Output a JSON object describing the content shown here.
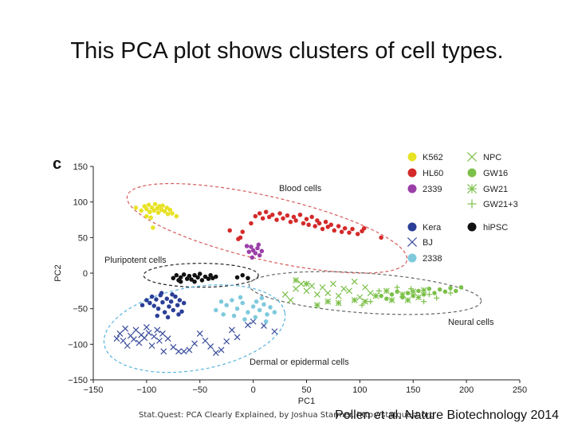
{
  "slide": {
    "title": "This PCA plot shows clusters of cell types.",
    "footer_left": "Stat.Quest: PCA Clearly Explained, by Joshua Starmer. http://statquest.org",
    "footer_right": "Pollen et al. Nature Biotechnology 2014"
  },
  "chart_data": {
    "type": "scatter",
    "panel_label": "c",
    "xlabel": "PC1",
    "ylabel": "PC2",
    "xlim": [
      -150,
      250
    ],
    "ylim": [
      -150,
      150
    ],
    "xticks": [
      -150,
      -100,
      -50,
      0,
      50,
      100,
      150,
      200,
      250
    ],
    "yticks": [
      150,
      100,
      50,
      0,
      -50,
      -100,
      -150
    ],
    "grid": false,
    "legend_position": "top-right",
    "cluster_labels": [
      "Blood cells",
      "Pluripotent cells",
      "Neural cells",
      "Dermal or epidermal cells"
    ],
    "series": [
      {
        "name": "K562",
        "marker": "dot",
        "color": "#e8e224",
        "points": [
          [
            -110,
            92
          ],
          [
            -105,
            88
          ],
          [
            -102,
            94
          ],
          [
            -100,
            90
          ],
          [
            -98,
            96
          ],
          [
            -97,
            86
          ],
          [
            -95,
            92
          ],
          [
            -93,
            88
          ],
          [
            -92,
            97
          ],
          [
            -90,
            91
          ],
          [
            -89,
            85
          ],
          [
            -88,
            94
          ],
          [
            -86,
            89
          ],
          [
            -85,
            95
          ],
          [
            -83,
            87
          ],
          [
            -81,
            92
          ],
          [
            -80,
            83
          ],
          [
            -78,
            89
          ],
          [
            -76,
            84
          ],
          [
            -72,
            80
          ],
          [
            -94,
            64
          ],
          [
            -100,
            80
          ],
          [
            -96,
            78
          ]
        ]
      },
      {
        "name": "HL60",
        "marker": "dot",
        "color": "#d42a2a",
        "points": [
          [
            2,
            80
          ],
          [
            6,
            84
          ],
          [
            9,
            77
          ],
          [
            12,
            86
          ],
          [
            15,
            79
          ],
          [
            18,
            82
          ],
          [
            22,
            75
          ],
          [
            25,
            84
          ],
          [
            28,
            77
          ],
          [
            32,
            81
          ],
          [
            35,
            72
          ],
          [
            38,
            79
          ],
          [
            40,
            74
          ],
          [
            44,
            82
          ],
          [
            47,
            70
          ],
          [
            50,
            76
          ],
          [
            52,
            68
          ],
          [
            55,
            79
          ],
          [
            58,
            66
          ],
          [
            60,
            74
          ],
          [
            62,
            70
          ],
          [
            65,
            62
          ],
          [
            68,
            72
          ],
          [
            70,
            65
          ],
          [
            73,
            68
          ],
          [
            76,
            60
          ],
          [
            80,
            66
          ],
          [
            83,
            58
          ],
          [
            86,
            63
          ],
          [
            90,
            57
          ],
          [
            93,
            62
          ],
          [
            98,
            55
          ],
          [
            102,
            59
          ],
          [
            104,
            63
          ],
          [
            120,
            50
          ],
          [
            -10,
            58
          ],
          [
            -12,
            50
          ],
          [
            -2,
            70
          ],
          [
            -22,
            60
          ],
          [
            -14,
            48
          ]
        ]
      },
      {
        "name": "2339",
        "marker": "dot",
        "color": "#9b3fa8",
        "points": [
          [
            -2,
            37
          ],
          [
            0,
            32
          ],
          [
            2,
            28
          ],
          [
            4,
            35
          ],
          [
            6,
            25
          ],
          [
            -4,
            30
          ],
          [
            8,
            31
          ],
          [
            5,
            40
          ],
          [
            -1,
            22
          ],
          [
            -6,
            38
          ]
        ]
      },
      {
        "name": "hiPSC",
        "marker": "dot",
        "color": "#111111",
        "points": [
          [
            -75,
            -7
          ],
          [
            -72,
            -3
          ],
          [
            -70,
            -10
          ],
          [
            -68,
            -6
          ],
          [
            -65,
            -2
          ],
          [
            -62,
            -8
          ],
          [
            -60,
            -4
          ],
          [
            -58,
            -9
          ],
          [
            -55,
            -3
          ],
          [
            -52,
            -6
          ],
          [
            -50,
            -1
          ],
          [
            -48,
            -10
          ],
          [
            -45,
            -5
          ],
          [
            -42,
            -8
          ],
          [
            -40,
            -3
          ],
          [
            -38,
            -7
          ],
          [
            -35,
            -5
          ],
          [
            -15,
            -6
          ],
          [
            -10,
            -3
          ],
          [
            -5,
            -7
          ],
          [
            -68,
            -12
          ],
          [
            -55,
            -12
          ]
        ]
      },
      {
        "name": "Kera",
        "marker": "dot",
        "color": "#2b3f97",
        "points": [
          [
            -100,
            -38
          ],
          [
            -97,
            -42
          ],
          [
            -95,
            -33
          ],
          [
            -93,
            -46
          ],
          [
            -91,
            -37
          ],
          [
            -89,
            -50
          ],
          [
            -87,
            -31
          ],
          [
            -85,
            -41
          ],
          [
            -83,
            -55
          ],
          [
            -81,
            -36
          ],
          [
            -79,
            -47
          ],
          [
            -77,
            -40
          ],
          [
            -75,
            -52
          ],
          [
            -73,
            -33
          ],
          [
            -71,
            -45
          ],
          [
            -69,
            -38
          ],
          [
            -67,
            -54
          ],
          [
            -65,
            -42
          ],
          [
            -90,
            -60
          ],
          [
            -80,
            -62
          ],
          [
            -70,
            -58
          ],
          [
            -104,
            -45
          ],
          [
            -86,
            -28
          ],
          [
            -76,
            -30
          ]
        ]
      },
      {
        "name": "BJ",
        "marker": "x",
        "color": "#3b4d9c",
        "points": [
          [
            -125,
            -85
          ],
          [
            -122,
            -95
          ],
          [
            -120,
            -78
          ],
          [
            -118,
            -102
          ],
          [
            -115,
            -88
          ],
          [
            -112,
            -93
          ],
          [
            -110,
            -80
          ],
          [
            -107,
            -98
          ],
          [
            -105,
            -87
          ],
          [
            -102,
            -91
          ],
          [
            -100,
            -76
          ],
          [
            -98,
            -84
          ],
          [
            -95,
            -102
          ],
          [
            -93,
            -89
          ],
          [
            -90,
            -80
          ],
          [
            -88,
            -95
          ],
          [
            -85,
            -85
          ],
          [
            -80,
            -92
          ],
          [
            -75,
            -104
          ],
          [
            -70,
            -110
          ],
          [
            -65,
            -110
          ],
          [
            -60,
            -108
          ],
          [
            -55,
            -99
          ],
          [
            -50,
            -85
          ],
          [
            -45,
            -95
          ],
          [
            -40,
            -103
          ],
          [
            -35,
            -112
          ],
          [
            -30,
            -108
          ],
          [
            -25,
            -96
          ],
          [
            -20,
            -80
          ],
          [
            -15,
            -90
          ],
          [
            -5,
            -73
          ],
          [
            0,
            -68
          ],
          [
            10,
            -74
          ],
          [
            20,
            -82
          ],
          [
            -128,
            -92
          ],
          [
            -84,
            -110
          ]
        ]
      },
      {
        "name": "2338",
        "marker": "dot",
        "color": "#7ec9dc",
        "points": [
          [
            -30,
            -40
          ],
          [
            -25,
            -45
          ],
          [
            -20,
            -38
          ],
          [
            -15,
            -50
          ],
          [
            -10,
            -42
          ],
          [
            -5,
            -55
          ],
          [
            0,
            -47
          ],
          [
            3,
            -40
          ],
          [
            6,
            -52
          ],
          [
            10,
            -44
          ],
          [
            13,
            -58
          ],
          [
            16,
            -48
          ],
          [
            -18,
            -60
          ],
          [
            -8,
            -65
          ],
          [
            2,
            -62
          ],
          [
            12,
            -68
          ],
          [
            20,
            -55
          ],
          [
            -35,
            -52
          ],
          [
            -28,
            -58
          ],
          [
            -12,
            -34
          ],
          [
            8,
            -35
          ]
        ]
      },
      {
        "name": "NPC",
        "marker": "x",
        "color": "#7cc04a",
        "points": [
          [
            40,
            -22
          ],
          [
            45,
            -15
          ],
          [
            50,
            -25
          ],
          [
            55,
            -18
          ],
          [
            60,
            -30
          ],
          [
            65,
            -20
          ],
          [
            70,
            -28
          ],
          [
            75,
            -15
          ],
          [
            80,
            -32
          ],
          [
            85,
            -22
          ],
          [
            90,
            -25
          ],
          [
            95,
            -12
          ],
          [
            100,
            -34
          ],
          [
            105,
            -20
          ],
          [
            30,
            -30
          ],
          [
            35,
            -38
          ],
          [
            110,
            -28
          ]
        ]
      },
      {
        "name": "GW16",
        "marker": "dot",
        "color": "#7cc04a",
        "points": [
          [
            130,
            -30
          ],
          [
            135,
            -26
          ],
          [
            140,
            -34
          ],
          [
            145,
            -28
          ],
          [
            150,
            -32
          ],
          [
            155,
            -25
          ],
          [
            160,
            -30
          ],
          [
            165,
            -22
          ],
          [
            170,
            -28
          ],
          [
            175,
            -23
          ],
          [
            180,
            -26
          ],
          [
            185,
            -21
          ],
          [
            190,
            -25
          ],
          [
            195,
            -20
          ],
          [
            125,
            -36
          ],
          [
            120,
            -32
          ]
        ]
      },
      {
        "name": "GW21",
        "marker": "star",
        "color": "#7cc04a",
        "points": [
          [
            40,
            -10
          ],
          [
            50,
            -15
          ],
          [
            60,
            -45
          ],
          [
            70,
            -40
          ],
          [
            80,
            -42
          ],
          [
            95,
            -38
          ],
          [
            105,
            -40
          ],
          [
            115,
            -32
          ],
          [
            125,
            -25
          ],
          [
            130,
            -38
          ],
          [
            140,
            -30
          ],
          [
            145,
            -38
          ],
          [
            150,
            -26
          ],
          [
            155,
            -34
          ],
          [
            160,
            -24
          ]
        ]
      },
      {
        "name": "GW21+3",
        "marker": "plus",
        "color": "#7cc04a",
        "points": [
          [
            110,
            -40
          ],
          [
            118,
            -25
          ],
          [
            135,
            -20
          ],
          [
            148,
            -22
          ],
          [
            160,
            -40
          ],
          [
            165,
            -30
          ],
          [
            172,
            -35
          ],
          [
            185,
            -28
          ],
          [
            102,
            -45
          ]
        ]
      }
    ]
  }
}
